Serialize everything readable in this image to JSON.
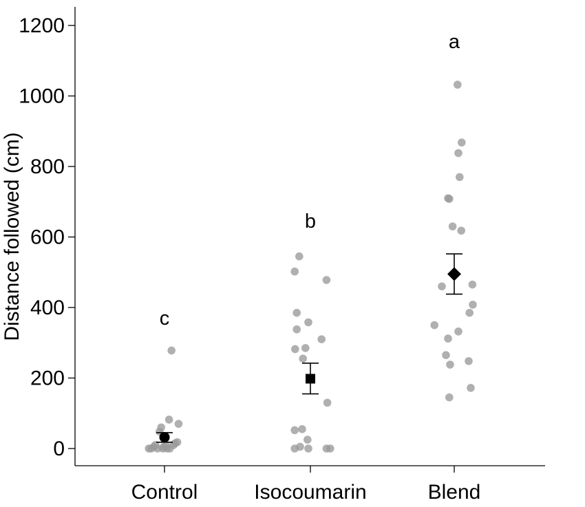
{
  "chart_data": {
    "type": "scatter",
    "ylabel": "Distance followed (cm)",
    "xlabel": "",
    "ylim": [
      -50,
      1230
    ],
    "yticks": [
      0,
      200,
      400,
      600,
      800,
      1000,
      1200
    ],
    "categories": [
      "Control",
      "Isocoumarin",
      "Blend"
    ],
    "grid": false,
    "legend": "none",
    "point_color": "#9a9a9a",
    "mean_color": "#000000",
    "groups": [
      {
        "category": "Control",
        "letter": "c",
        "mean_marker": "circle",
        "mean": 32,
        "error_low": 18,
        "error_high": 45,
        "points": [
          {
            "dx": -0.38,
            "y": 0
          },
          {
            "dx": -0.32,
            "y": 0
          },
          {
            "dx": -0.26,
            "y": 5
          },
          {
            "dx": -0.22,
            "y": 10
          },
          {
            "dx": -0.17,
            "y": 0
          },
          {
            "dx": -0.12,
            "y": 48
          },
          {
            "dx": -0.08,
            "y": 60
          },
          {
            "dx": -0.04,
            "y": 0
          },
          {
            "dx": -0.02,
            "y": 5
          },
          {
            "dx": 0.04,
            "y": 8
          },
          {
            "dx": 0.03,
            "y": 30
          },
          {
            "dx": 0.06,
            "y": 0
          },
          {
            "dx": 0.11,
            "y": 82
          },
          {
            "dx": 0.13,
            "y": 0
          },
          {
            "dx": 0.17,
            "y": 278
          },
          {
            "dx": 0.22,
            "y": 10
          },
          {
            "dx": 0.26,
            "y": 15
          },
          {
            "dx": 0.31,
            "y": 18
          },
          {
            "dx": 0.34,
            "y": 70
          }
        ]
      },
      {
        "category": "Isocoumarin",
        "letter": "b",
        "mean_marker": "square",
        "mean": 198,
        "error_low": 155,
        "error_high": 242,
        "points": [
          {
            "dx": -0.38,
            "y": 502
          },
          {
            "dx": -0.38,
            "y": 52
          },
          {
            "dx": -0.38,
            "y": 0
          },
          {
            "dx": -0.37,
            "y": 282
          },
          {
            "dx": -0.33,
            "y": 385
          },
          {
            "dx": -0.33,
            "y": 338
          },
          {
            "dx": -0.27,
            "y": 545
          },
          {
            "dx": -0.25,
            "y": 5
          },
          {
            "dx": -0.2,
            "y": 55
          },
          {
            "dx": -0.18,
            "y": 255
          },
          {
            "dx": -0.12,
            "y": 285
          },
          {
            "dx": -0.05,
            "y": 358
          },
          {
            "dx": -0.07,
            "y": 25
          },
          {
            "dx": -0.05,
            "y": 0
          },
          {
            "dx": 0.27,
            "y": 310
          },
          {
            "dx": 0.39,
            "y": 478
          },
          {
            "dx": 0.41,
            "y": 130
          },
          {
            "dx": 0.39,
            "y": 0
          },
          {
            "dx": 0.48,
            "y": 0
          }
        ]
      },
      {
        "category": "Blend",
        "letter": "a",
        "mean_marker": "diamond",
        "mean": 495,
        "error_low": 438,
        "error_high": 552,
        "points": [
          {
            "dx": -0.48,
            "y": 350
          },
          {
            "dx": -0.3,
            "y": 460
          },
          {
            "dx": -0.2,
            "y": 265
          },
          {
            "dx": -0.15,
            "y": 710
          },
          {
            "dx": -0.12,
            "y": 708
          },
          {
            "dx": -0.15,
            "y": 312
          },
          {
            "dx": -0.1,
            "y": 238
          },
          {
            "dx": -0.12,
            "y": 145
          },
          {
            "dx": -0.04,
            "y": 630
          },
          {
            "dx": 0.08,
            "y": 1032
          },
          {
            "dx": 0.1,
            "y": 838
          },
          {
            "dx": 0.1,
            "y": 332
          },
          {
            "dx": 0.13,
            "y": 770
          },
          {
            "dx": 0.18,
            "y": 868
          },
          {
            "dx": 0.17,
            "y": 618
          },
          {
            "dx": 0.35,
            "y": 248
          },
          {
            "dx": 0.37,
            "y": 385
          },
          {
            "dx": 0.4,
            "y": 172
          },
          {
            "dx": 0.44,
            "y": 465
          },
          {
            "dx": 0.45,
            "y": 408
          }
        ]
      }
    ]
  }
}
